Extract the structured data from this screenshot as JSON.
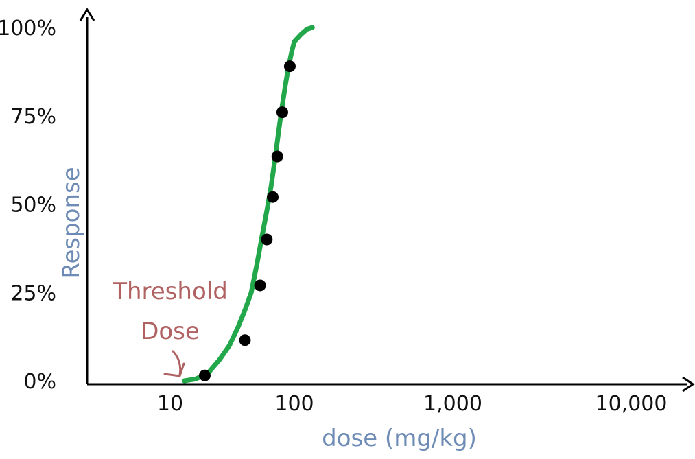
{
  "chart_data": {
    "type": "line",
    "xlabel": "dose (mg/kg)",
    "ylabel": "Response",
    "x_scale": "log",
    "xlim": [
      3,
      30000
    ],
    "ylim": [
      0,
      100
    ],
    "x_ticks": [
      {
        "value": 10,
        "label": "10"
      },
      {
        "value": 100,
        "label": "100"
      },
      {
        "value": 1000,
        "label": "1,000"
      },
      {
        "value": 10000,
        "label": "10,000"
      }
    ],
    "y_ticks": [
      {
        "value": 0,
        "label": "0%"
      },
      {
        "value": 25,
        "label": "25%"
      },
      {
        "value": 50,
        "label": "50%"
      },
      {
        "value": 75,
        "label": "75%"
      },
      {
        "value": 100,
        "label": "100%"
      }
    ],
    "curve": {
      "color": "#22a84a",
      "x": [
        13,
        16,
        20,
        25,
        30,
        35,
        40,
        45,
        50,
        55,
        60,
        65,
        70,
        75,
        80,
        85,
        90,
        95,
        100,
        110,
        120,
        130
      ],
      "y": [
        0,
        0.5,
        2,
        6,
        10,
        15,
        20,
        25,
        33,
        41,
        48,
        55,
        63,
        71,
        78,
        84,
        89,
        93,
        96,
        98,
        99.5,
        100
      ]
    },
    "points": {
      "color": "#000000",
      "x": [
        19,
        40,
        53,
        60,
        67,
        73,
        80,
        92
      ],
      "y": [
        1.5,
        11.5,
        27,
        40,
        52,
        63.5,
        76,
        89
      ]
    },
    "annotation": {
      "text_line1": "Threshold",
      "text_line2": "Dose",
      "target_x": 13,
      "target_y": 0
    },
    "grid": false,
    "legend": "none"
  }
}
